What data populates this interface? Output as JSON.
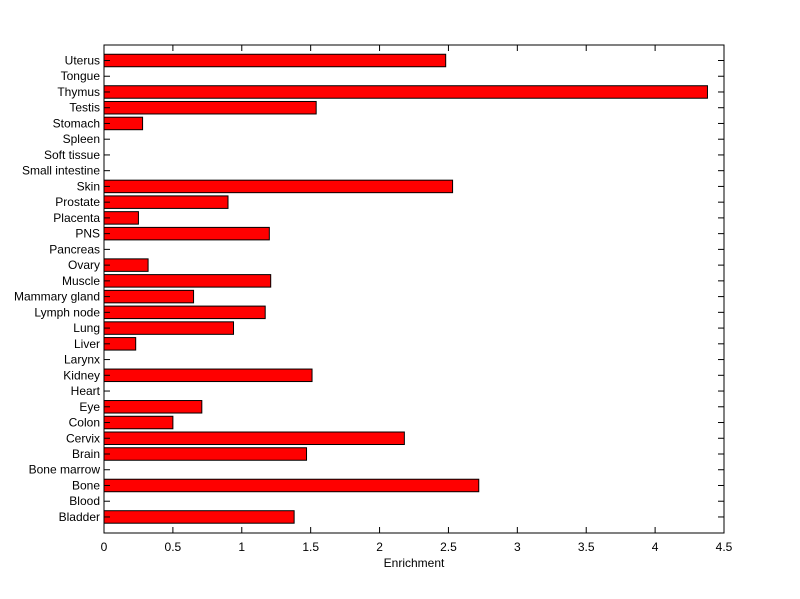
{
  "chart_data": {
    "type": "bar",
    "orientation": "horizontal",
    "categories": [
      "Bladder",
      "Blood",
      "Bone",
      "Bone marrow",
      "Brain",
      "Cervix",
      "Colon",
      "Eye",
      "Heart",
      "Kidney",
      "Larynx",
      "Liver",
      "Lung",
      "Lymph node",
      "Mammary gland",
      "Muscle",
      "Ovary",
      "Pancreas",
      "PNS",
      "Placenta",
      "Prostate",
      "Skin",
      "Small intestine",
      "Soft tissue",
      "Spleen",
      "Stomach",
      "Testis",
      "Thymus",
      "Tongue",
      "Uterus"
    ],
    "values": [
      1.38,
      0,
      2.72,
      0,
      1.47,
      2.18,
      0.5,
      0.71,
      0,
      1.51,
      0,
      0.23,
      0.94,
      1.17,
      0.65,
      1.21,
      0.32,
      0,
      1.2,
      0.25,
      0.9,
      2.53,
      0,
      0,
      0,
      0.28,
      1.54,
      4.38,
      0,
      2.48
    ],
    "xlabel": "Enrichment",
    "ylabel": "",
    "title": "",
    "xlim": [
      0,
      4.5
    ],
    "xticks": [
      "0",
      "0.5",
      "1",
      "1.5",
      "2",
      "2.5",
      "3",
      "3.5",
      "4",
      "4.5"
    ],
    "bar_color": "#ff0000",
    "edge_color": "#000000",
    "grid": false,
    "legend": "none"
  }
}
